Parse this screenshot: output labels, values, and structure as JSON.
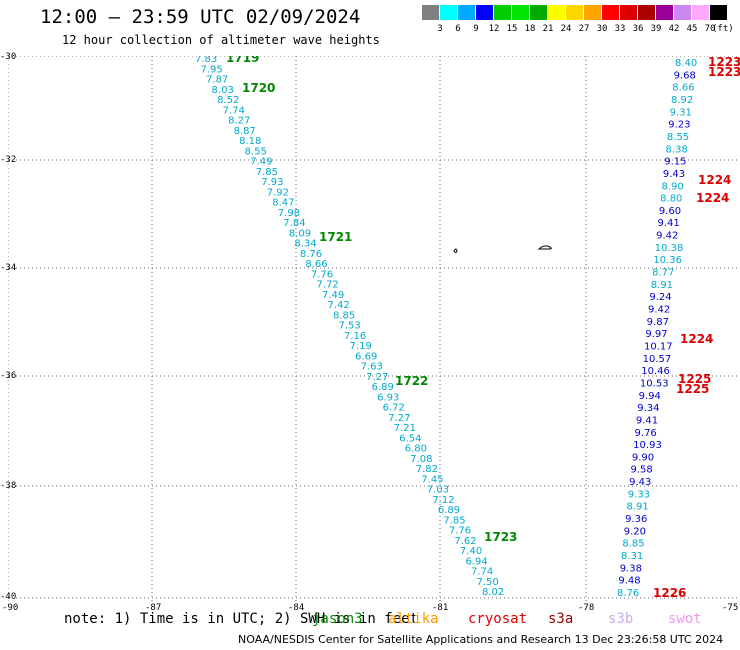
{
  "title": "12:00 — 23:59 UTC 02/09/2024",
  "subtitle": "12 hour collection of altimeter wave heights",
  "legend": {
    "levels": [
      "3",
      "6",
      "9",
      "12",
      "15",
      "18",
      "21",
      "24",
      "27",
      "30",
      "33",
      "36",
      "39",
      "42",
      "45",
      "70"
    ],
    "unit": "(ft)",
    "colors": [
      "#808080",
      "#00ffff",
      "#00aaff",
      "#0000ff",
      "#00cc00",
      "#00e600",
      "#00aa00",
      "#ffff00",
      "#ffd700",
      "#ffa500",
      "#ff0000",
      "#dd0000",
      "#aa0000",
      "#990099",
      "#cc88ee",
      "#ffaaff",
      "#000000"
    ]
  },
  "axes": {
    "lat_labels": [
      "-30",
      "-32",
      "-34",
      "-36",
      "-38",
      "-40"
    ],
    "lon_labels": [
      "-90",
      "-87",
      "-84",
      "-81",
      "-78",
      "-75"
    ]
  },
  "note": "note: 1) Time is in UTC; 2) SWH is in feet",
  "satellites": [
    {
      "name": "jason3",
      "color": "#008800"
    },
    {
      "name": "altika",
      "color": "#ff9900"
    },
    {
      "name": "cryosat",
      "color": "#dd0000"
    },
    {
      "name": "s3a",
      "color": "#990000"
    },
    {
      "name": "s3b",
      "color": "#ccaaee"
    },
    {
      "name": "swot",
      "color": "#ee99ee"
    }
  ],
  "credit": "NOAA/NESDIS Center for Satellite Applications and Research   13 Dec 23:26:58 UTC 2024",
  "track_west": {
    "color": "#00aacc",
    "values": [
      "7.83",
      "7.95",
      "7.87",
      "8.03",
      "8.52",
      "7.74",
      "8.27",
      "8.87",
      "8.18",
      "8.55",
      "7.49",
      "7.85",
      "7.93",
      "7.92",
      "8.47",
      "7.98",
      "7.84",
      "8.09",
      "8.34",
      "8.76",
      "8.66",
      "7.76",
      "7.72",
      "7.49",
      "7.42",
      "8.85",
      "7.53",
      "7.16",
      "7.19",
      "6.69",
      "7.63",
      "7.27",
      "6.89",
      "6.93",
      "6.72",
      "7.27",
      "7.21",
      "6.54",
      "6.80",
      "7.08",
      "7.82",
      "7.45",
      "7.03",
      "7.12",
      "6.89",
      "7.85",
      "7.76",
      "7.62",
      "7.40",
      "6.94",
      "7.74",
      "7.50",
      "8.02"
    ],
    "time_labels": [
      "1719",
      "1720",
      "1721",
      "1722",
      "1723"
    ]
  },
  "track_east": {
    "values": [
      {
        "v": "8.40",
        "c": "#00aacc"
      },
      {
        "v": "9.68",
        "c": "#0000cc"
      },
      {
        "v": "8.66",
        "c": "#00aacc"
      },
      {
        "v": "8.92",
        "c": "#00aacc"
      },
      {
        "v": "9.31",
        "c": "#00aacc"
      },
      {
        "v": "9.23",
        "c": "#0000cc"
      },
      {
        "v": "8.55",
        "c": "#00aacc"
      },
      {
        "v": "8.38",
        "c": "#00aacc"
      },
      {
        "v": "9.15",
        "c": "#0000cc"
      },
      {
        "v": "9.43",
        "c": "#0000cc"
      },
      {
        "v": "8.90",
        "c": "#00aacc"
      },
      {
        "v": "8.80",
        "c": "#00aacc"
      },
      {
        "v": "9.60",
        "c": "#0000cc"
      },
      {
        "v": "9.41",
        "c": "#0000cc"
      },
      {
        "v": "9.42",
        "c": "#0000cc"
      },
      {
        "v": "10.38",
        "c": "#00aacc"
      },
      {
        "v": "10.36",
        "c": "#00aacc"
      },
      {
        "v": "8.77",
        "c": "#00aacc"
      },
      {
        "v": "8.91",
        "c": "#00aacc"
      },
      {
        "v": "9.24",
        "c": "#0000cc"
      },
      {
        "v": "9.42",
        "c": "#0000cc"
      },
      {
        "v": "9.87",
        "c": "#0000cc"
      },
      {
        "v": "9.97",
        "c": "#0000cc"
      },
      {
        "v": "10.17",
        "c": "#0000cc"
      },
      {
        "v": "10.57",
        "c": "#0000cc"
      },
      {
        "v": "10.46",
        "c": "#0000cc"
      },
      {
        "v": "10.53",
        "c": "#0000cc"
      },
      {
        "v": "9.94",
        "c": "#0000cc"
      },
      {
        "v": "9.34",
        "c": "#0000cc"
      },
      {
        "v": "9.41",
        "c": "#0000cc"
      },
      {
        "v": "9.76",
        "c": "#0000cc"
      },
      {
        "v": "10.93",
        "c": "#0000cc"
      },
      {
        "v": "9.90",
        "c": "#0000cc"
      },
      {
        "v": "9.58",
        "c": "#0000cc"
      },
      {
        "v": "9.43",
        "c": "#0000cc"
      },
      {
        "v": "9.33",
        "c": "#00aacc"
      },
      {
        "v": "8.91",
        "c": "#00aacc"
      },
      {
        "v": "9.36",
        "c": "#0000cc"
      },
      {
        "v": "9.20",
        "c": "#0000cc"
      },
      {
        "v": "8.85",
        "c": "#00aacc"
      },
      {
        "v": "8.31",
        "c": "#00aacc"
      },
      {
        "v": "9.38",
        "c": "#0000cc"
      },
      {
        "v": "9.48",
        "c": "#0000cc"
      },
      {
        "v": "8.76",
        "c": "#00aacc"
      }
    ],
    "time_labels": [
      "1223",
      "1223",
      "1224",
      "1224",
      "1224",
      "1225",
      "1225",
      "1226"
    ]
  }
}
